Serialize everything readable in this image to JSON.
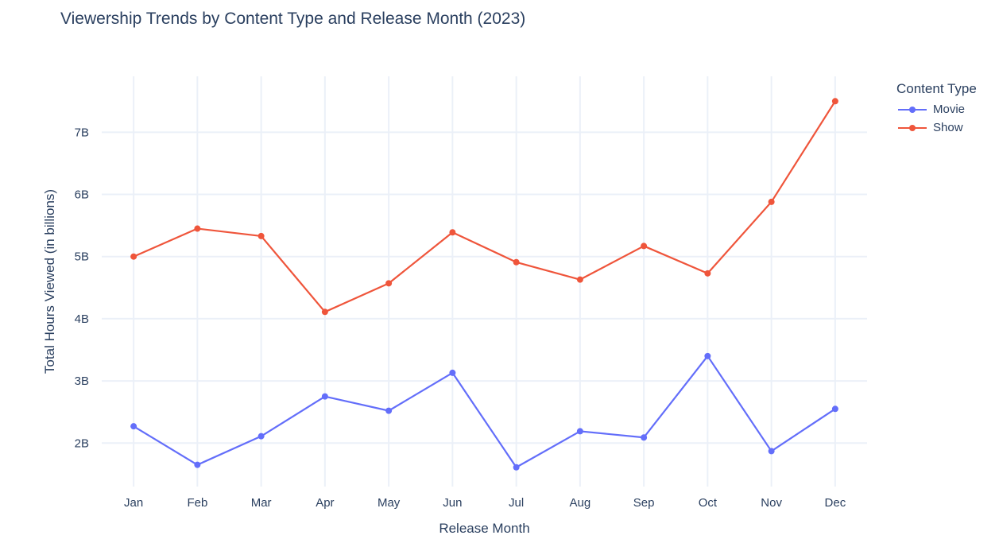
{
  "chart_data": {
    "type": "line",
    "title": "Viewership Trends by Content Type and Release Month (2023)",
    "xlabel": "Release Month",
    "ylabel": "Total Hours Viewed (in billions)",
    "categories": [
      "Jan",
      "Feb",
      "Mar",
      "Apr",
      "May",
      "Jun",
      "Jul",
      "Aug",
      "Sep",
      "Oct",
      "Nov",
      "Dec"
    ],
    "ylim": [
      1.3,
      7.9
    ],
    "yticks": [
      2,
      3,
      4,
      5,
      6,
      7
    ],
    "ytick_labels": [
      "2B",
      "3B",
      "4B",
      "5B",
      "6B",
      "7B"
    ],
    "grid": true,
    "legend": {
      "title": "Content Type",
      "placement": "top-right"
    },
    "series": [
      {
        "name": "Movie",
        "color": "#636efa",
        "values": [
          2.27,
          1.65,
          2.11,
          2.75,
          2.52,
          3.13,
          1.61,
          2.19,
          2.09,
          3.4,
          1.87,
          2.55
        ]
      },
      {
        "name": "Show",
        "color": "#ef553b",
        "values": [
          5.0,
          5.45,
          5.33,
          4.11,
          4.57,
          5.39,
          4.91,
          4.63,
          5.17,
          4.73,
          5.88,
          7.5
        ]
      }
    ]
  }
}
